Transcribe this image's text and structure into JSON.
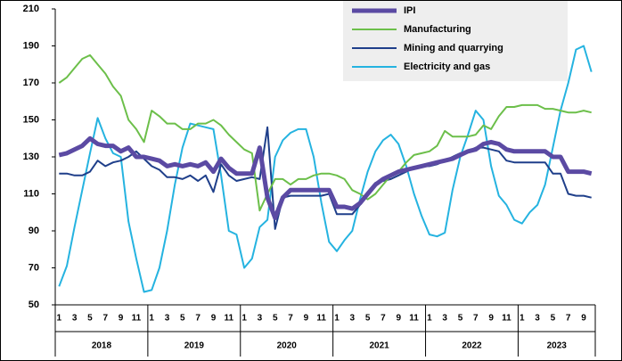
{
  "chart_data": {
    "type": "line",
    "categories": [
      "1",
      null,
      "3",
      null,
      "5",
      null,
      "7",
      null,
      "9",
      null,
      "11",
      null,
      "1",
      null,
      "3",
      null,
      "5",
      null,
      "7",
      null,
      "9",
      null,
      "11",
      null,
      "1",
      null,
      "3",
      null,
      "5",
      null,
      "7",
      null,
      "9",
      null,
      "11",
      null,
      "1",
      null,
      "3",
      null,
      "5",
      null,
      "7",
      null,
      "9",
      null,
      "11",
      null,
      "1",
      null,
      "3",
      null,
      "5",
      null,
      "7",
      null,
      "9",
      null,
      "11",
      null,
      "1",
      null,
      "3",
      null,
      "5",
      null,
      "7",
      null,
      "9",
      null
    ],
    "years": [
      "2018",
      "2019",
      "2020",
      "2021",
      "2022",
      "2023"
    ],
    "ylim": [
      50,
      210
    ],
    "yticks": [
      50,
      70,
      90,
      110,
      130,
      150,
      170,
      190,
      210
    ],
    "series": [
      {
        "name": "IPI",
        "color": "#5b4aa3",
        "width": 5,
        "values": [
          131,
          132,
          134,
          136,
          140,
          137,
          136,
          136,
          133,
          135,
          130,
          130,
          129,
          128,
          125,
          126,
          125,
          126,
          125,
          127,
          122,
          129,
          124,
          121,
          121,
          121,
          135,
          108,
          97,
          108,
          112,
          112,
          112,
          112,
          112,
          112,
          103,
          103,
          102,
          105,
          110,
          115,
          118,
          120,
          122,
          123,
          124,
          125,
          126,
          127,
          128,
          129,
          131,
          133,
          134,
          137,
          138,
          137,
          134,
          133,
          133,
          133,
          133,
          133,
          130,
          130,
          122,
          122,
          122,
          121
        ]
      },
      {
        "name": "Manufacturing",
        "color": "#6cbf4a",
        "width": 2,
        "values": [
          170,
          173,
          178,
          183,
          185,
          180,
          175,
          168,
          163,
          150,
          145,
          138,
          155,
          152,
          148,
          148,
          145,
          145,
          148,
          148,
          150,
          147,
          142,
          138,
          134,
          132,
          101,
          110,
          118,
          118,
          115,
          118,
          118,
          120,
          121,
          121,
          120,
          118,
          112,
          110,
          107,
          110,
          115,
          120,
          122,
          127,
          131,
          132,
          133,
          136,
          144,
          141,
          141,
          141,
          142,
          147,
          145,
          152,
          157,
          157,
          158,
          158,
          158,
          156,
          156,
          155,
          154,
          154,
          155,
          154
        ]
      },
      {
        "name": "Mining and quarrying",
        "color": "#1f3f8a",
        "width": 2,
        "values": [
          121,
          121,
          120,
          120,
          122,
          128,
          125,
          127,
          128,
          130,
          133,
          129,
          125,
          123,
          119,
          119,
          118,
          120,
          117,
          120,
          111,
          126,
          120,
          117,
          118,
          119,
          118,
          146,
          91,
          108,
          109,
          109,
          109,
          109,
          109,
          110,
          99,
          99,
          99,
          104,
          110,
          116,
          117,
          118,
          120,
          122,
          124,
          125,
          125,
          126,
          128,
          130,
          132,
          133,
          135,
          135,
          134,
          133,
          128,
          127,
          127,
          127,
          127,
          127,
          121,
          121,
          110,
          109,
          109,
          108
        ]
      },
      {
        "name": "Electricity and gas",
        "color": "#25b3e0",
        "width": 2,
        "values": [
          60,
          71,
          92,
          112,
          132,
          151,
          140,
          132,
          130,
          95,
          75,
          57,
          58,
          70,
          90,
          115,
          135,
          148,
          147,
          146,
          145,
          120,
          90,
          88,
          70,
          75,
          92,
          96,
          130,
          139,
          143,
          145,
          145,
          130,
          105,
          84,
          79,
          85,
          90,
          107,
          122,
          133,
          139,
          142,
          137,
          125,
          110,
          98,
          88,
          87,
          89,
          112,
          130,
          142,
          155,
          150,
          125,
          109,
          104,
          96,
          94,
          100,
          104,
          115,
          135,
          155,
          170,
          188,
          190,
          176
        ]
      }
    ]
  }
}
